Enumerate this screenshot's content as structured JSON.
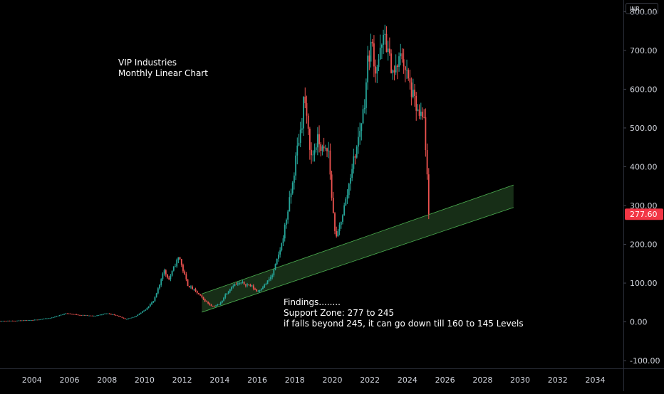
{
  "currency": "INR",
  "annotations": {
    "title_lines": [
      "VIP Industries",
      "Monthly Linear Chart"
    ],
    "findings_lines": [
      "Findings........",
      "Support Zone: 277 to 245",
      "if falls beyond 245, it can go down till 160 to 145 Levels"
    ]
  },
  "colors": {
    "up": "#26a69a",
    "down": "#ef5350",
    "price_badge": "#f23645",
    "channel_fill": "#1f3d1f",
    "channel_line": "#4caf50",
    "background": "#000000",
    "axis_text": "#d1d4dc"
  },
  "chart_data": {
    "type": "candlestick",
    "title": "",
    "last_price": "277.60",
    "y_ticks": [
      "800.00",
      "700.00",
      "600.00",
      "500.00",
      "400.00",
      "300.00",
      "200.00",
      "100.00",
      "0.00",
      "-100.00"
    ],
    "y_tick_values": [
      800,
      700,
      600,
      500,
      400,
      300,
      200,
      100,
      0,
      -100
    ],
    "x_ticks": [
      "2004",
      "2006",
      "2008",
      "2010",
      "2012",
      "2014",
      "2016",
      "2018",
      "2020",
      "2022",
      "2024",
      "2026",
      "2028",
      "2030",
      "2032",
      "2034"
    ],
    "x_tick_years": [
      2004,
      2006,
      2008,
      2010,
      2012,
      2014,
      2016,
      2018,
      2020,
      2022,
      2024,
      2026,
      2028,
      2030,
      2032,
      2034
    ],
    "ylim": [
      -120,
      830
    ],
    "xlim": [
      2002.3,
      2035.5
    ],
    "price_path": [
      [
        2002.3,
        2
      ],
      [
        2004.0,
        4
      ],
      [
        2005.0,
        10
      ],
      [
        2005.8,
        22
      ],
      [
        2006.5,
        18
      ],
      [
        2007.3,
        15
      ],
      [
        2008.0,
        22
      ],
      [
        2008.5,
        17
      ],
      [
        2009.0,
        6
      ],
      [
        2009.5,
        14
      ],
      [
        2010.0,
        30
      ],
      [
        2010.5,
        55
      ],
      [
        2010.8,
        95
      ],
      [
        2011.0,
        135
      ],
      [
        2011.3,
        110
      ],
      [
        2011.7,
        155
      ],
      [
        2011.85,
        170
      ],
      [
        2012.0,
        140
      ],
      [
        2012.3,
        95
      ],
      [
        2012.8,
        75
      ],
      [
        2013.2,
        55
      ],
      [
        2013.6,
        40
      ],
      [
        2014.0,
        45
      ],
      [
        2014.3,
        70
      ],
      [
        2014.7,
        95
      ],
      [
        2015.2,
        100
      ],
      [
        2015.7,
        92
      ],
      [
        2016.0,
        78
      ],
      [
        2016.4,
        95
      ],
      [
        2016.8,
        120
      ],
      [
        2017.0,
        150
      ],
      [
        2017.3,
        200
      ],
      [
        2017.6,
        280
      ],
      [
        2017.9,
        360
      ],
      [
        2018.1,
        440
      ],
      [
        2018.4,
        520
      ],
      [
        2018.5,
        600
      ],
      [
        2018.6,
        530
      ],
      [
        2018.9,
        420
      ],
      [
        2019.2,
        470
      ],
      [
        2019.5,
        440
      ],
      [
        2019.8,
        440
      ],
      [
        2020.0,
        300
      ],
      [
        2020.2,
        210
      ],
      [
        2020.5,
        270
      ],
      [
        2020.8,
        330
      ],
      [
        2021.0,
        390
      ],
      [
        2021.3,
        450
      ],
      [
        2021.7,
        560
      ],
      [
        2021.9,
        680
      ],
      [
        2022.1,
        720
      ],
      [
        2022.3,
        650
      ],
      [
        2022.6,
        700
      ],
      [
        2022.8,
        740
      ],
      [
        2023.0,
        680
      ],
      [
        2023.3,
        640
      ],
      [
        2023.7,
        690
      ],
      [
        2024.0,
        630
      ],
      [
        2024.3,
        580
      ],
      [
        2024.6,
        530
      ],
      [
        2024.9,
        520
      ],
      [
        2025.0,
        420
      ],
      [
        2025.15,
        277.6
      ]
    ],
    "support_channel": {
      "x_start": 2013.05,
      "x_end": 2029.65,
      "lower": [
        25,
        295
      ],
      "upper": [
        72,
        353
      ]
    }
  }
}
